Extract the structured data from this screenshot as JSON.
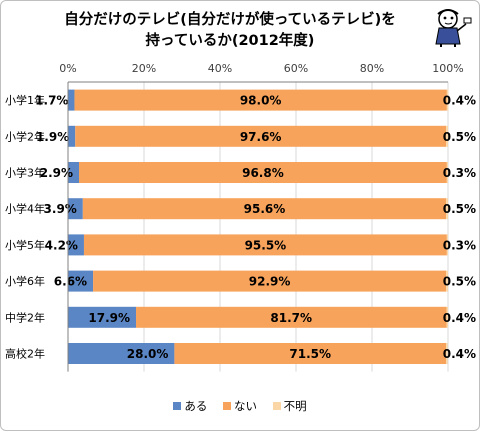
{
  "title_line1": "自分だけのテレビ(自分だけが使っているテレビ)を",
  "title_line2": "持っているか(2012年度)",
  "legend": [
    "ある",
    "ない",
    "不明"
  ],
  "colors": {
    "aru": "#5b86c5",
    "nai": "#f7a35c",
    "fumei": "#fbd7a8"
  },
  "chart_data": {
    "type": "bar",
    "orientation": "horizontal",
    "stacked": true,
    "percent_axis": true,
    "xlim": [
      0,
      100
    ],
    "ticks": [
      "0%",
      "20%",
      "40%",
      "60%",
      "80%",
      "100%"
    ],
    "categories": [
      "小学1年",
      "小学2年",
      "小学3年",
      "小学4年",
      "小学5年",
      "小学6年",
      "中学2年",
      "高校2年"
    ],
    "series": [
      {
        "name": "ある",
        "values": [
          1.7,
          1.9,
          2.9,
          3.9,
          4.2,
          6.6,
          17.9,
          28.0
        ],
        "labels": [
          "1.7%",
          "1.9%",
          "2.9%",
          "3.9%",
          "4.2%",
          "6.6%",
          "17.9%",
          "28.0%"
        ]
      },
      {
        "name": "ない",
        "values": [
          98.0,
          97.6,
          96.8,
          95.6,
          95.5,
          92.9,
          81.7,
          71.5
        ],
        "labels": [
          "98.0%",
          "97.6%",
          "96.8%",
          "95.6%",
          "95.5%",
          "92.9%",
          "81.7%",
          "71.5%"
        ]
      },
      {
        "name": "不明",
        "values": [
          0.4,
          0.5,
          0.3,
          0.5,
          0.3,
          0.5,
          0.4,
          0.4
        ],
        "labels": [
          "0.4%",
          "0.5%",
          "0.3%",
          "0.5%",
          "0.3%",
          "0.5%",
          "0.4%",
          "0.4%"
        ]
      }
    ],
    "grid": true,
    "legend_position": "bottom"
  }
}
